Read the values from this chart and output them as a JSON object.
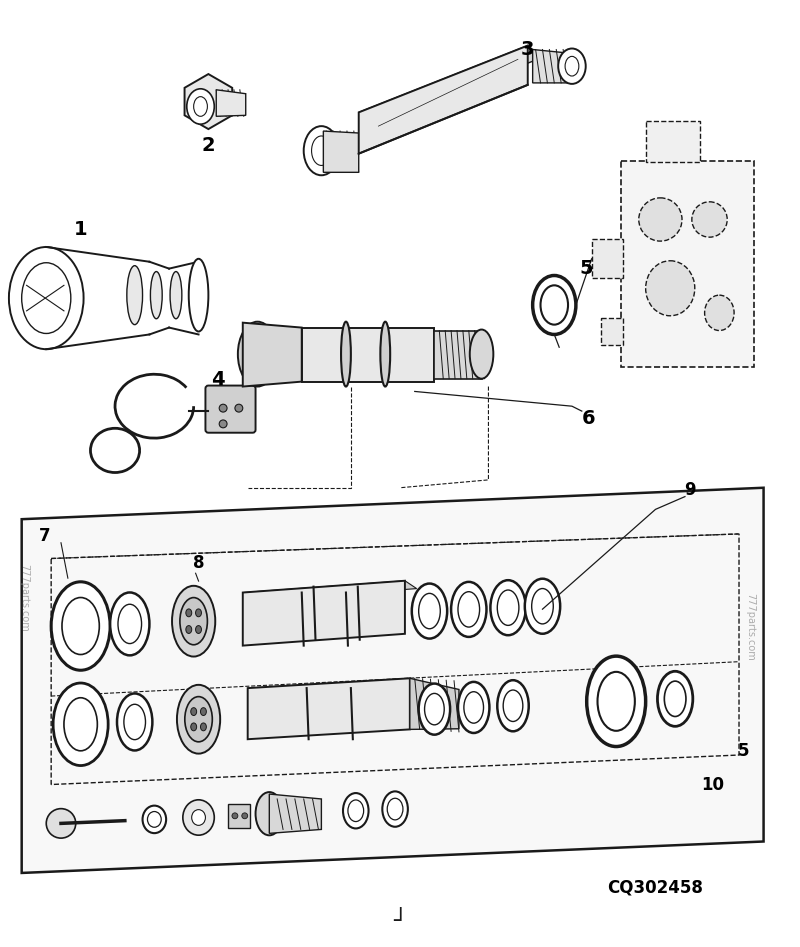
{
  "bg_color": "#ffffff",
  "line_color": "#1a1a1a",
  "fig_width": 8.0,
  "fig_height": 9.47,
  "dpi": 100,
  "code": "CQ302458",
  "wm_left": "777parts.com",
  "wm_right": "777parts.com"
}
